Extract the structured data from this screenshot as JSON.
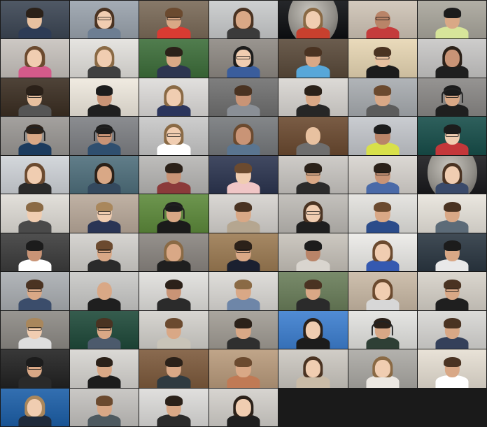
{
  "meeting": {
    "view": "gallery",
    "columns": 7,
    "participant_count": 74
  },
  "colors": {
    "background": "#1a1a1a",
    "skin": [
      "#e8c1a0",
      "#d9a886",
      "#c99476",
      "#b98468",
      "#f0cdb1"
    ],
    "hair": [
      "#2b2119",
      "#4a3322",
      "#6b4a2f",
      "#8a6a45",
      "#1c1c1c",
      "#a9875c"
    ]
  },
  "tiles": [
    {
      "bg": "#3c4654",
      "shirt": "#2d3b55",
      "skin": 0,
      "hair": 0,
      "hairstyle": "short",
      "glasses": false
    },
    {
      "bg": "#9aa3ad",
      "shirt": "#6d7e92",
      "skin": 4,
      "hair": 1,
      "hairstyle": "long",
      "glasses": true
    },
    {
      "bg": "#7a6a58",
      "shirt": "#d93b32",
      "skin": 1,
      "hair": 2,
      "hairstyle": "short",
      "glasses": true
    },
    {
      "bg": "#c9cbcc",
      "shirt": "#3b3b3b",
      "skin": 1,
      "hair": 1,
      "hairstyle": "long",
      "glasses": false
    },
    {
      "bg": "#0d0f12",
      "shirt": "#c8402e",
      "skin": 4,
      "hair": 3,
      "hairstyle": "long",
      "glasses": false,
      "prop": "moon"
    },
    {
      "bg": "#cfc4b6",
      "shirt": "#c43c3c",
      "skin": 3,
      "hair": 5,
      "hairstyle": "bald",
      "glasses": true
    },
    {
      "bg": "#a9a69c",
      "shirt": "#d7e59a",
      "skin": 1,
      "hair": 4,
      "hairstyle": "short",
      "glasses": false
    },
    {
      "bg": "#c7c2bd",
      "shirt": "#d45a8a",
      "skin": 4,
      "hair": 2,
      "hairstyle": "long",
      "glasses": false
    },
    {
      "bg": "#e3e1dd",
      "shirt": "#404040",
      "skin": 4,
      "hair": 3,
      "hairstyle": "long",
      "glasses": false
    },
    {
      "bg": "#3d6e3a",
      "shirt": "#2d3550",
      "skin": 1,
      "hair": 0,
      "hairstyle": "short",
      "glasses": false
    },
    {
      "bg": "#8e8983",
      "shirt": "#3a5d9c",
      "skin": 4,
      "hair": 4,
      "hairstyle": "long",
      "glasses": true
    },
    {
      "bg": "#5a4a3a",
      "shirt": "#58a7d9",
      "skin": 1,
      "hair": 1,
      "hairstyle": "short",
      "glasses": false
    },
    {
      "bg": "#e7d6b3",
      "shirt": "#1c1c1c",
      "skin": 0,
      "hair": 1,
      "hairstyle": "short",
      "glasses": true
    },
    {
      "bg": "#c8c7c6",
      "shirt": "#1f1f1f",
      "skin": 2,
      "hair": 0,
      "hairstyle": "long",
      "glasses": false
    },
    {
      "bg": "#3b2e22",
      "shirt": "#555555",
      "skin": 0,
      "hair": 0,
      "hairstyle": "short",
      "glasses": true
    },
    {
      "bg": "#efe9de",
      "shirt": "#1f1f1f",
      "skin": 2,
      "hair": 4,
      "hairstyle": "short",
      "glasses": false
    },
    {
      "bg": "#dedcda",
      "shirt": "#2b355c",
      "skin": 4,
      "hair": 3,
      "hairstyle": "long",
      "glasses": false
    },
    {
      "bg": "#707070",
      "shirt": "#8a8f96",
      "skin": 2,
      "hair": 1,
      "hairstyle": "short",
      "glasses": false
    },
    {
      "bg": "#d9d6d2",
      "shirt": "#262626",
      "skin": 1,
      "hair": 0,
      "hairstyle": "short",
      "glasses": false
    },
    {
      "bg": "#a8acb0",
      "shirt": "#5c5c5c",
      "skin": 1,
      "hair": 2,
      "hairstyle": "short",
      "glasses": false
    },
    {
      "bg": "#8a8886",
      "shirt": "#1f1f1f",
      "skin": 1,
      "hair": 4,
      "hairstyle": "short",
      "glasses": true,
      "headset": true
    },
    {
      "bg": "#9a9794",
      "shirt": "#1c3b5e",
      "skin": 1,
      "hair": 0,
      "hairstyle": "short",
      "glasses": false,
      "headset": true
    },
    {
      "bg": "#7e8084",
      "shirt": "#2f4f6f",
      "skin": 2,
      "hair": 4,
      "hairstyle": "short",
      "glasses": true,
      "headset": true
    },
    {
      "bg": "#c8c8c8",
      "shirt": "#ffffff",
      "skin": 4,
      "hair": 3,
      "hairstyle": "long",
      "glasses": true
    },
    {
      "bg": "#76797c",
      "shirt": "#5a7590",
      "skin": 2,
      "hair": 2,
      "hairstyle": "long",
      "glasses": false
    },
    {
      "bg": "#6b4a30",
      "shirt": "#6e6e6e",
      "skin": 0,
      "hair": 5,
      "hairstyle": "bald",
      "glasses": false
    },
    {
      "bg": "#c4c7cc",
      "shirt": "#d8e04a",
      "skin": 3,
      "hair": 4,
      "hairstyle": "short",
      "glasses": false
    },
    {
      "bg": "#174e4a",
      "shirt": "#c4373a",
      "skin": 4,
      "hair": 4,
      "hairstyle": "short",
      "glasses": true
    },
    {
      "bg": "#cfd3d8",
      "shirt": "#2b2b2b",
      "skin": 4,
      "hair": 2,
      "hairstyle": "long",
      "glasses": false
    },
    {
      "bg": "#4f6f7c",
      "shirt": "#34495e",
      "skin": 1,
      "hair": 0,
      "hairstyle": "long",
      "glasses": false
    },
    {
      "bg": "#b7b6b4",
      "shirt": "#8b3a3a",
      "skin": 2,
      "hair": 0,
      "hairstyle": "short",
      "glasses": false
    },
    {
      "bg": "#2c3550",
      "shirt": "#f0c6c6",
      "skin": 4,
      "hair": 2,
      "hairstyle": "short",
      "glasses": false
    },
    {
      "bg": "#c9c6c2",
      "shirt": "#2b2b2b",
      "skin": 1,
      "hair": 0,
      "hairstyle": "short",
      "glasses": true
    },
    {
      "bg": "#d8d4cf",
      "shirt": "#4a6aa8",
      "skin": 2,
      "hair": 0,
      "hairstyle": "short",
      "glasses": true
    },
    {
      "bg": "#1a1a1d",
      "shirt": "#3a4a6a",
      "skin": 4,
      "hair": 1,
      "hairstyle": "long",
      "glasses": false,
      "prop": "moon"
    },
    {
      "bg": "#dfdcd6",
      "shirt": "#4a4a4a",
      "skin": 4,
      "hair": 3,
      "hairstyle": "short",
      "glasses": false
    },
    {
      "bg": "#b9a99a",
      "shirt": "#2a3555",
      "skin": 4,
      "hair": 5,
      "hairstyle": "short",
      "glasses": true
    },
    {
      "bg": "#5d8a3b",
      "shirt": "#1b1b1b",
      "skin": 1,
      "hair": 4,
      "hairstyle": "short",
      "glasses": false,
      "headset": true
    },
    {
      "bg": "#d6d3cf",
      "shirt": "#b5a690",
      "skin": 1,
      "hair": 1,
      "hairstyle": "short",
      "glasses": false
    },
    {
      "bg": "#bdbab5",
      "shirt": "#1f1f1f",
      "skin": 4,
      "hair": 1,
      "hairstyle": "long",
      "glasses": true
    },
    {
      "bg": "#e3e2de",
      "shirt": "#2b4c8a",
      "skin": 1,
      "hair": 2,
      "hairstyle": "short",
      "glasses": false
    },
    {
      "bg": "#e8e4dc",
      "shirt": "#5c6b78",
      "skin": 1,
      "hair": 1,
      "hairstyle": "short",
      "glasses": false
    },
    {
      "bg": "#3c3c3c",
      "shirt": "#ffffff",
      "skin": 2,
      "hair": 4,
      "hairstyle": "short",
      "glasses": false
    },
    {
      "bg": "#d2d0cc",
      "shirt": "#2b2b2b",
      "skin": 1,
      "hair": 2,
      "hairstyle": "short",
      "glasses": true
    },
    {
      "bg": "#8a8580",
      "shirt": "#1f1f1f",
      "skin": 1,
      "hair": 3,
      "hairstyle": "long",
      "glasses": false
    },
    {
      "bg": "#9c7b53",
      "shirt": "#1b2030",
      "skin": 1,
      "hair": 0,
      "hairstyle": "short",
      "glasses": true
    },
    {
      "bg": "#c7c2ba",
      "shirt": "#d9d5cf",
      "skin": 3,
      "hair": 4,
      "hairstyle": "short",
      "glasses": false
    },
    {
      "bg": "#ecebe8",
      "shirt": "#3559b0",
      "skin": 4,
      "hair": 2,
      "hairstyle": "long",
      "glasses": false
    },
    {
      "bg": "#2b3742",
      "shirt": "#e9e9e9",
      "skin": 1,
      "hair": 4,
      "hairstyle": "short",
      "glasses": false
    },
    {
      "bg": "#aaaeb2",
      "shirt": "#3b4d6b",
      "skin": 1,
      "hair": 1,
      "hairstyle": "short",
      "glasses": true
    },
    {
      "bg": "#c9c9c7",
      "shirt": "#1f1f1f",
      "skin": 1,
      "hair": 5,
      "hairstyle": "bald",
      "glasses": false
    },
    {
      "bg": "#e1e0dd",
      "shirt": "#2b2b2b",
      "skin": 2,
      "hair": 0,
      "hairstyle": "short",
      "glasses": false
    },
    {
      "bg": "#dcdad6",
      "shirt": "#6e86a8",
      "skin": 1,
      "hair": 3,
      "hairstyle": "short",
      "glasses": false
    },
    {
      "bg": "#6a7e5a",
      "shirt": "#2b2b2b",
      "skin": 1,
      "hair": 1,
      "hairstyle": "short",
      "glasses": false
    },
    {
      "bg": "#c9b9a5",
      "shirt": "#d7d7d7",
      "skin": 4,
      "hair": 2,
      "hairstyle": "long",
      "glasses": false
    },
    {
      "bg": "#d7d2c9",
      "shirt": "#1f1f1f",
      "skin": 1,
      "hair": 1,
      "hairstyle": "short",
      "glasses": true
    },
    {
      "bg": "#8d8a85",
      "shirt": "#dedede",
      "skin": 4,
      "hair": 5,
      "hairstyle": "short",
      "glasses": true
    },
    {
      "bg": "#1f4a3a",
      "shirt": "#4c5a6c",
      "skin": 1,
      "hair": 1,
      "hairstyle": "short",
      "glasses": true
    },
    {
      "bg": "#d3d1cc",
      "shirt": "#c9c4b8",
      "skin": 1,
      "hair": 2,
      "hairstyle": "short",
      "glasses": false
    },
    {
      "bg": "#a19c94",
      "shirt": "#2f2f2f",
      "skin": 1,
      "hair": 0,
      "hairstyle": "short",
      "glasses": false
    },
    {
      "bg": "#3d7fd0",
      "shirt": "#1c1c1c",
      "skin": 4,
      "hair": 0,
      "hairstyle": "long",
      "glasses": false
    },
    {
      "bg": "#e3e3e0",
      "shirt": "#2e3f35",
      "skin": 1,
      "hair": 0,
      "hairstyle": "short",
      "glasses": false,
      "headset": true
    },
    {
      "bg": "#d8d7d4",
      "shirt": "#34405a",
      "skin": 1,
      "hair": 1,
      "hairstyle": "short",
      "glasses": false
    },
    {
      "bg": "#222222",
      "shirt": "#2a2a2a",
      "skin": 1,
      "hair": 4,
      "hairstyle": "short",
      "glasses": true
    },
    {
      "bg": "#d7d5d1",
      "shirt": "#1c1c1c",
      "skin": 1,
      "hair": 0,
      "hairstyle": "short",
      "glasses": false
    },
    {
      "bg": "#7d5a3c",
      "shirt": "#2f3a40",
      "skin": 1,
      "hair": 0,
      "hairstyle": "short",
      "glasses": false
    },
    {
      "bg": "#b99b7c",
      "shirt": "#c07a55",
      "skin": 1,
      "hair": 2,
      "hairstyle": "short",
      "glasses": false
    },
    {
      "bg": "#ccc8c1",
      "shirt": "#c9bba7",
      "skin": 4,
      "hair": 1,
      "hairstyle": "long",
      "glasses": false
    },
    {
      "bg": "#aba9a4",
      "shirt": "#ece8e2",
      "skin": 4,
      "hair": 3,
      "hairstyle": "long",
      "glasses": false
    },
    {
      "bg": "#e6dfd3",
      "shirt": "#ffffff",
      "skin": 1,
      "hair": 1,
      "hairstyle": "short",
      "glasses": false
    },
    {
      "bg": "#1c5fa8",
      "shirt": "#1f2a3a",
      "skin": 4,
      "hair": 5,
      "hairstyle": "long",
      "glasses": false
    },
    {
      "bg": "#c4c2bf",
      "shirt": "#4e5a60",
      "skin": 1,
      "hair": 2,
      "hairstyle": "short",
      "glasses": false
    },
    {
      "bg": "#dddcda",
      "shirt": "#2b2b2b",
      "skin": 1,
      "hair": 0,
      "hairstyle": "short",
      "glasses": false
    },
    {
      "bg": "#d3d0cb",
      "shirt": "#1f1f1f",
      "skin": 4,
      "hair": 0,
      "hairstyle": "long",
      "glasses": false
    }
  ]
}
